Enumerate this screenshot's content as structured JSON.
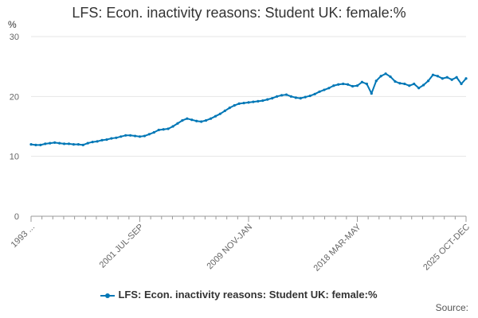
{
  "chart_data": {
    "type": "line",
    "title": "LFS: Econ. inactivity reasons: Student UK: female:%",
    "ylabel": "%",
    "ylim": [
      0,
      30
    ],
    "yticks": [
      0,
      10,
      20,
      30
    ],
    "grid": true,
    "x_tick_labels": [
      "1993 ...",
      "2001 JUL-SEP",
      "2009 NOV-JAN",
      "2018 MAR-MAY",
      "2025 OCT-DEC"
    ],
    "x_tick_index": [
      0,
      100,
      200,
      300,
      400
    ],
    "series": [
      {
        "name": "LFS: Econ. inactivity reasons: Student UK: female:%",
        "color": "#0077b6",
        "values": [
          12.0,
          11.9,
          11.9,
          12.1,
          12.2,
          12.3,
          12.2,
          12.1,
          12.1,
          12.0,
          12.0,
          11.9,
          12.2,
          12.4,
          12.5,
          12.7,
          12.8,
          13.0,
          13.1,
          13.3,
          13.5,
          13.5,
          13.4,
          13.3,
          13.4,
          13.7,
          14.0,
          14.4,
          14.5,
          14.6,
          15.0,
          15.5,
          16.0,
          16.3,
          16.1,
          15.9,
          15.8,
          16.0,
          16.3,
          16.7,
          17.1,
          17.6,
          18.1,
          18.5,
          18.8,
          18.9,
          19.0,
          19.1,
          19.2,
          19.3,
          19.5,
          19.7,
          20.0,
          20.2,
          20.3,
          20.0,
          19.8,
          19.7,
          19.9,
          20.1,
          20.4,
          20.8,
          21.1,
          21.4,
          21.8,
          22.0,
          22.1,
          22.0,
          21.7,
          21.8,
          22.4,
          22.1,
          20.5,
          22.6,
          23.4,
          23.8,
          23.3,
          22.5,
          22.2,
          22.1,
          21.8,
          22.1,
          21.4,
          21.9,
          22.6,
          23.6,
          23.4,
          23.0,
          23.2,
          22.8,
          23.2,
          22.1,
          23.0
        ]
      }
    ],
    "legend": "bottom",
    "source_label": "Source:"
  }
}
